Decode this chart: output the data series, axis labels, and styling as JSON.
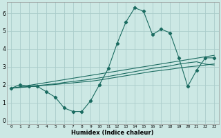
{
  "xlabel": "Humidex (Indice chaleur)",
  "ylabel": "",
  "xlim": [
    -0.5,
    23.5
  ],
  "ylim": [
    -0.2,
    6.6
  ],
  "xticks": [
    0,
    1,
    2,
    3,
    4,
    5,
    6,
    7,
    8,
    9,
    10,
    11,
    12,
    13,
    14,
    15,
    16,
    17,
    18,
    19,
    20,
    21,
    22,
    23
  ],
  "yticks": [
    0,
    1,
    2,
    3,
    4,
    5,
    6
  ],
  "bg_color": "#cce8e4",
  "grid_color": "#aaccca",
  "line_color": "#1a6b60",
  "main_y": [
    1.8,
    2.0,
    1.9,
    1.9,
    1.6,
    1.3,
    0.7,
    0.5,
    0.5,
    1.1,
    2.0,
    2.9,
    4.3,
    5.5,
    6.3,
    6.1,
    4.8,
    5.1,
    4.9,
    3.5,
    1.9,
    2.8,
    3.5,
    3.5
  ],
  "line2_y": [
    1.8,
    1.88,
    1.96,
    2.04,
    2.12,
    2.2,
    2.28,
    2.36,
    2.44,
    2.52,
    2.6,
    2.68,
    2.76,
    2.84,
    2.92,
    3.0,
    3.08,
    3.16,
    3.24,
    3.32,
    3.4,
    3.48,
    3.56,
    3.64
  ],
  "line3_y": [
    1.8,
    1.85,
    1.9,
    1.95,
    2.0,
    2.05,
    2.12,
    2.18,
    2.24,
    2.3,
    2.38,
    2.46,
    2.55,
    2.64,
    2.73,
    2.82,
    2.91,
    2.98,
    3.05,
    3.15,
    3.22,
    3.28,
    3.15,
    3.1
  ],
  "line4_y": [
    1.8,
    1.84,
    1.88,
    1.93,
    1.97,
    2.01,
    2.06,
    2.1,
    2.15,
    2.19,
    2.26,
    2.34,
    2.42,
    2.5,
    2.58,
    2.66,
    2.74,
    2.8,
    2.86,
    2.93,
    2.99,
    3.04,
    3.1,
    3.16
  ]
}
